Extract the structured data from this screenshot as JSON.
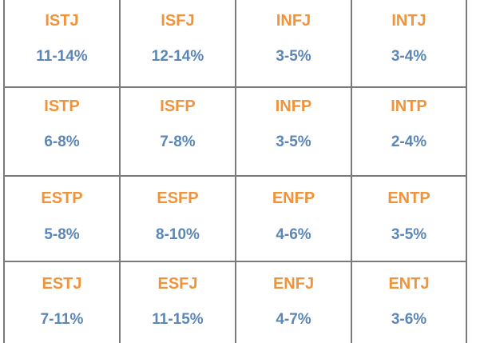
{
  "table": {
    "rows": [
      [
        {
          "type": "ISTJ",
          "percent": "11-14%"
        },
        {
          "type": "ISFJ",
          "percent": "12-14%"
        },
        {
          "type": "INFJ",
          "percent": "3-5%"
        },
        {
          "type": "INTJ",
          "percent": "3-4%"
        }
      ],
      [
        {
          "type": "ISTP",
          "percent": "6-8%"
        },
        {
          "type": "ISFP",
          "percent": "7-8%"
        },
        {
          "type": "INFP",
          "percent": "3-5%"
        },
        {
          "type": "INTP",
          "percent": "2-4%"
        }
      ],
      [
        {
          "type": "ESTP",
          "percent": "5-8%"
        },
        {
          "type": "ESFP",
          "percent": "8-10%"
        },
        {
          "type": "ENFP",
          "percent": "4-6%"
        },
        {
          "type": "ENTP",
          "percent": "3-5%"
        }
      ],
      [
        {
          "type": "ESTJ",
          "percent": "7-11%"
        },
        {
          "type": "ESFJ",
          "percent": "11-15%"
        },
        {
          "type": "ENFJ",
          "percent": "4-7%"
        },
        {
          "type": "ENTJ",
          "percent": "3-6%"
        }
      ]
    ]
  },
  "colors": {
    "type_text": "#f0933a",
    "percent_text": "#5b86b6",
    "grid_line": "#7a7a7a"
  }
}
